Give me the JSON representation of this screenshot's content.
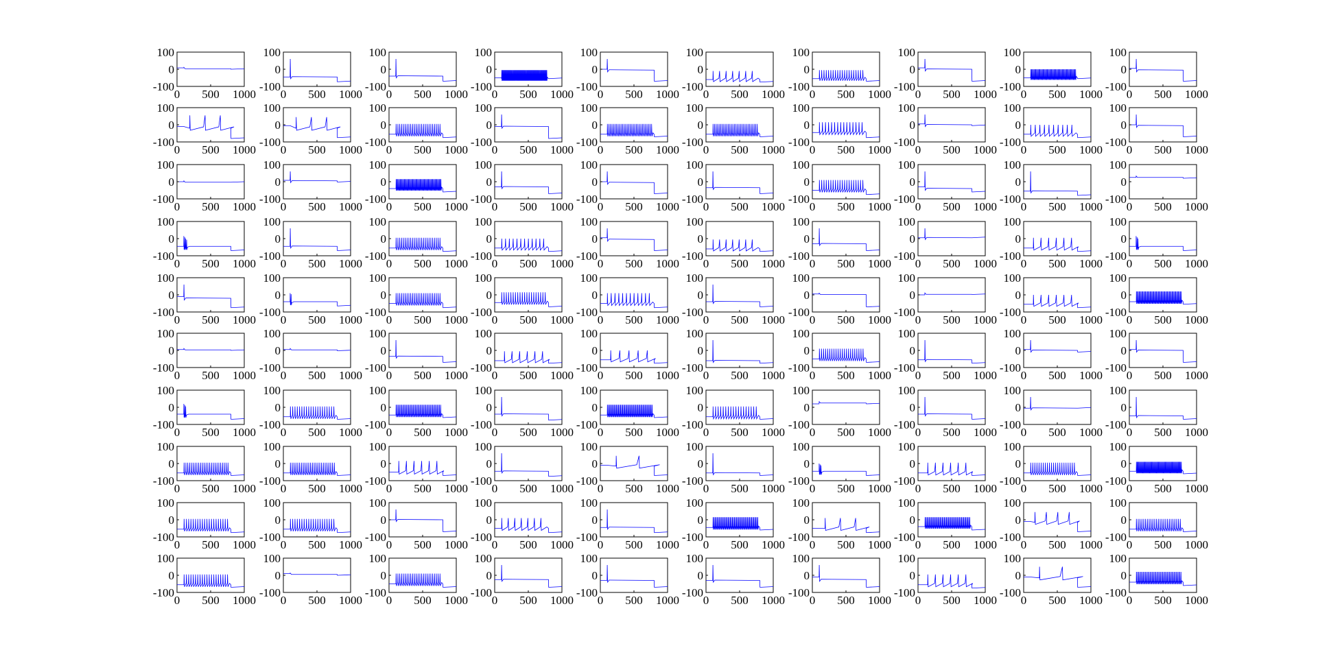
{
  "figure": {
    "rows": 10,
    "cols": 10,
    "trace_color": "#0000ff"
  },
  "axes": {
    "xlim": [
      0,
      1000
    ],
    "ylim": [
      -100,
      100
    ],
    "xticks": [
      0,
      500,
      1000
    ],
    "yticks": [
      100,
      0,
      -100
    ],
    "xtick_labels": [
      "0",
      "500",
      "1000"
    ],
    "ytick_labels": [
      "100",
      "0",
      "-100"
    ]
  },
  "chart_data": {
    "type": "line",
    "title": "",
    "xlabel": "",
    "ylabel": "",
    "xlim": [
      0,
      1000
    ],
    "ylim": [
      -100,
      100
    ],
    "grid": false,
    "note": "panels listed row-major",
    "panels": [
      {
        "p": "D",
        "rest": 8,
        "plat": 3,
        "spk": 0,
        "end": 0
      },
      {
        "p": "S",
        "rest": -45,
        "plat": -45,
        "spk": 1,
        "end": -73
      },
      {
        "p": "S",
        "rest": -40,
        "plat": -40,
        "spk": 1,
        "end": -70
      },
      {
        "p": "F",
        "rest": -50,
        "plat": -55,
        "spk": 70,
        "amp": 35,
        "end": -55
      },
      {
        "p": "S",
        "rest": 0,
        "plat": -5,
        "spk": 1,
        "end": -70
      },
      {
        "p": "R",
        "rest": -60,
        "plat": -60,
        "spk": 7,
        "amp": 35,
        "end": -75
      },
      {
        "p": "R",
        "rest": -55,
        "plat": -55,
        "spk": 20,
        "amp": 35,
        "end": -70
      },
      {
        "p": "S",
        "rest": 8,
        "plat": 0,
        "spk": 1,
        "end": -70
      },
      {
        "p": "F",
        "rest": -50,
        "plat": -50,
        "spk": 55,
        "amp": 35,
        "end": -55
      },
      {
        "p": "S",
        "rest": 5,
        "plat": -5,
        "spk": 1,
        "end": -70
      },
      {
        "p": "R",
        "rest": -10,
        "plat": -20,
        "spk": 3,
        "amp": 60,
        "end": -80
      },
      {
        "p": "R",
        "rest": -5,
        "plat": -20,
        "spk": 3,
        "amp": 50,
        "end": -75
      },
      {
        "p": "R",
        "rest": -55,
        "plat": -55,
        "spk": 25,
        "amp": 45,
        "end": -75
      },
      {
        "p": "S",
        "rest": -10,
        "plat": -10,
        "spk": 1,
        "end": -80
      },
      {
        "p": "R",
        "rest": -55,
        "plat": -55,
        "spk": 30,
        "amp": 45,
        "end": -70
      },
      {
        "p": "R",
        "rest": -55,
        "plat": -55,
        "spk": 30,
        "amp": 45,
        "end": -70
      },
      {
        "p": "R",
        "rest": -45,
        "plat": -45,
        "spk": 15,
        "amp": 45,
        "end": -75
      },
      {
        "p": "S",
        "rest": 5,
        "plat": 0,
        "spk": 1,
        "end": -5
      },
      {
        "p": "R",
        "rest": -55,
        "plat": -55,
        "spk": 10,
        "amp": 40,
        "end": -75
      },
      {
        "p": "S",
        "rest": 0,
        "plat": -5,
        "spk": 1,
        "end": -70
      },
      {
        "p": "D",
        "rest": 0,
        "plat": -3,
        "spk": 0,
        "end": -3
      },
      {
        "p": "S",
        "rest": 8,
        "plat": 5,
        "spk": 1,
        "end": -2
      },
      {
        "p": "F",
        "rest": -40,
        "plat": -40,
        "spk": 55,
        "amp": 40,
        "end": -60
      },
      {
        "p": "S",
        "rest": -30,
        "plat": -30,
        "spk": 1,
        "end": -70
      },
      {
        "p": "S",
        "rest": 0,
        "plat": -5,
        "spk": 1,
        "end": -70
      },
      {
        "p": "S",
        "rest": -35,
        "plat": -35,
        "spk": 1,
        "end": -70
      },
      {
        "p": "R",
        "rest": -50,
        "plat": -50,
        "spk": 20,
        "amp": 45,
        "end": -75
      },
      {
        "p": "S",
        "rest": -30,
        "plat": -40,
        "spk": 3,
        "end": -60
      },
      {
        "p": "S",
        "rest": -55,
        "plat": -55,
        "spk": 1,
        "end": -80
      },
      {
        "p": "D",
        "rest": 25,
        "plat": 25,
        "spk": 0,
        "end": 20
      },
      {
        "p": "B",
        "rest": -45,
        "plat": -45,
        "spk": 4,
        "amp": 60,
        "end": -70
      },
      {
        "p": "S",
        "rest": -45,
        "plat": -45,
        "spk": 1,
        "end": -70
      },
      {
        "p": "R",
        "rest": -55,
        "plat": -55,
        "spk": 25,
        "amp": 45,
        "end": -75
      },
      {
        "p": "R",
        "rest": -55,
        "plat": -55,
        "spk": 12,
        "amp": 40,
        "end": -75
      },
      {
        "p": "S",
        "rest": 5,
        "plat": -5,
        "spk": 1,
        "end": -70
      },
      {
        "p": "R",
        "rest": -60,
        "plat": -60,
        "spk": 7,
        "amp": 40,
        "end": -75
      },
      {
        "p": "S",
        "rest": -30,
        "plat": -30,
        "spk": 1,
        "end": -70
      },
      {
        "p": "S",
        "rest": 5,
        "plat": 5,
        "spk": 1,
        "end": 5
      },
      {
        "p": "R",
        "rest": -55,
        "plat": -55,
        "spk": 6,
        "amp": 45,
        "end": -75
      },
      {
        "p": "B",
        "rest": -45,
        "plat": -45,
        "spk": 3,
        "amp": 60,
        "end": -70
      },
      {
        "p": "S",
        "rest": -10,
        "plat": -20,
        "spk": 1,
        "end": -75
      },
      {
        "p": "B",
        "rest": -40,
        "plat": -40,
        "spk": 2,
        "amp": 50,
        "end": -65
      },
      {
        "p": "R",
        "rest": -50,
        "plat": -50,
        "spk": 25,
        "amp": 45,
        "end": -75
      },
      {
        "p": "R",
        "rest": -45,
        "plat": -45,
        "spk": 20,
        "amp": 45,
        "end": -70
      },
      {
        "p": "R",
        "rest": -50,
        "plat": -50,
        "spk": 12,
        "amp": 45,
        "end": -75
      },
      {
        "p": "S",
        "rest": -40,
        "plat": -40,
        "spk": 1,
        "end": -70
      },
      {
        "p": "D",
        "rest": 5,
        "plat": 2,
        "spk": 0,
        "end": -70
      },
      {
        "p": "D",
        "rest": 0,
        "plat": 3,
        "spk": 0,
        "end": 2
      },
      {
        "p": "R",
        "rest": -55,
        "plat": -55,
        "spk": 6,
        "amp": 40,
        "end": -75
      },
      {
        "p": "F",
        "rest": -40,
        "plat": -40,
        "spk": 50,
        "amp": 45,
        "end": -55
      },
      {
        "p": "D",
        "rest": 5,
        "plat": 3,
        "spk": 0,
        "end": 0
      },
      {
        "p": "D",
        "rest": 5,
        "plat": 3,
        "spk": 0,
        "end": -2
      },
      {
        "p": "S",
        "rest": -35,
        "plat": -35,
        "spk": 1,
        "end": -70
      },
      {
        "p": "R",
        "rest": -60,
        "plat": -60,
        "spk": 6,
        "amp": 40,
        "end": -75
      },
      {
        "p": "R",
        "rest": -55,
        "plat": -55,
        "spk": 5,
        "amp": 40,
        "end": -75
      },
      {
        "p": "S",
        "rest": -60,
        "plat": -60,
        "spk": 1,
        "end": -75
      },
      {
        "p": "R",
        "rest": -50,
        "plat": -50,
        "spk": 22,
        "amp": 45,
        "end": -70
      },
      {
        "p": "S",
        "rest": -55,
        "plat": -55,
        "spk": 1,
        "end": -75
      },
      {
        "p": "S",
        "rest": 5,
        "plat": 0,
        "spk": 1,
        "end": -10
      },
      {
        "p": "S",
        "rest": 5,
        "plat": 0,
        "spk": 1,
        "end": -70
      },
      {
        "p": "B",
        "rest": -40,
        "plat": -40,
        "spk": 3,
        "amp": 60,
        "end": -70
      },
      {
        "p": "R",
        "rest": -55,
        "plat": -55,
        "spk": 20,
        "amp": 45,
        "end": -70
      },
      {
        "p": "F",
        "rest": -45,
        "plat": -45,
        "spk": 40,
        "amp": 45,
        "end": -60
      },
      {
        "p": "S",
        "rest": -40,
        "plat": -40,
        "spk": 1,
        "end": -75
      },
      {
        "p": "F",
        "rest": -45,
        "plat": -45,
        "spk": 45,
        "amp": 45,
        "end": -60
      },
      {
        "p": "R",
        "rest": -55,
        "plat": -55,
        "spk": 18,
        "amp": 45,
        "end": -70
      },
      {
        "p": "D",
        "rest": 20,
        "plat": 25,
        "spk": 0,
        "end": 20
      },
      {
        "p": "S",
        "rest": -40,
        "plat": -40,
        "spk": 1,
        "end": -70
      },
      {
        "p": "S",
        "rest": -5,
        "plat": -5,
        "spk": 1,
        "end": -5
      },
      {
        "p": "S",
        "rest": -50,
        "plat": -50,
        "spk": 1,
        "end": -70
      },
      {
        "p": "R",
        "rest": -55,
        "plat": -55,
        "spk": 25,
        "amp": 45,
        "end": -70
      },
      {
        "p": "R",
        "rest": -55,
        "plat": -55,
        "spk": 25,
        "amp": 45,
        "end": -70
      },
      {
        "p": "R",
        "rest": -50,
        "plat": -50,
        "spk": 6,
        "amp": 50,
        "end": -70
      },
      {
        "p": "S",
        "rest": -45,
        "plat": -45,
        "spk": 1,
        "end": -75
      },
      {
        "p": "R",
        "rest": -10,
        "plat": -15,
        "spk": 2,
        "amp": 45,
        "end": -70
      },
      {
        "p": "S",
        "rest": -55,
        "plat": -55,
        "spk": 1,
        "end": -70
      },
      {
        "p": "B",
        "rest": -45,
        "plat": -45,
        "spk": 3,
        "amp": 45,
        "end": -70
      },
      {
        "p": "R",
        "rest": -55,
        "plat": -55,
        "spk": 6,
        "amp": 45,
        "end": -70
      },
      {
        "p": "R",
        "rest": -55,
        "plat": -55,
        "spk": 22,
        "amp": 45,
        "end": -70
      },
      {
        "p": "F",
        "rest": -45,
        "plat": -45,
        "spk": 60,
        "amp": 40,
        "end": -60
      },
      {
        "p": "R",
        "rest": -55,
        "plat": -55,
        "spk": 20,
        "amp": 45,
        "end": -75
      },
      {
        "p": "R",
        "rest": -55,
        "plat": -55,
        "spk": 20,
        "amp": 45,
        "end": -75
      },
      {
        "p": "S",
        "rest": 0,
        "plat": 0,
        "spk": 1,
        "end": -70
      },
      {
        "p": "R",
        "rest": -50,
        "plat": -50,
        "spk": 7,
        "amp": 45,
        "end": -75
      },
      {
        "p": "S",
        "rest": -45,
        "plat": -45,
        "spk": 1,
        "end": -75
      },
      {
        "p": "F",
        "rest": -45,
        "plat": -45,
        "spk": 45,
        "amp": 45,
        "end": -60
      },
      {
        "p": "R",
        "rest": -50,
        "plat": -50,
        "spk": 3,
        "amp": 45,
        "end": -75
      },
      {
        "p": "F",
        "rest": -40,
        "plat": -40,
        "spk": 45,
        "amp": 40,
        "end": -60
      },
      {
        "p": "R",
        "rest": -10,
        "plat": -15,
        "spk": 4,
        "amp": 45,
        "end": -70
      },
      {
        "p": "R",
        "rest": -55,
        "plat": -55,
        "spk": 25,
        "amp": 45,
        "end": -70
      },
      {
        "p": "R",
        "rest": -55,
        "plat": -55,
        "spk": 20,
        "amp": 45,
        "end": -70
      },
      {
        "p": "D",
        "rest": 10,
        "plat": 5,
        "spk": 0,
        "end": 0
      },
      {
        "p": "R",
        "rest": -50,
        "plat": -50,
        "spk": 25,
        "amp": 45,
        "end": -70
      },
      {
        "p": "S",
        "rest": -25,
        "plat": -25,
        "spk": 1,
        "end": -70
      },
      {
        "p": "S",
        "rest": -30,
        "plat": -30,
        "spk": 1,
        "end": -70
      },
      {
        "p": "S",
        "rest": -30,
        "plat": -30,
        "spk": 1,
        "end": -70
      },
      {
        "p": "S",
        "rest": -10,
        "plat": -25,
        "spk": 1,
        "end": -70
      },
      {
        "p": "R",
        "rest": -55,
        "plat": -55,
        "spk": 6,
        "amp": 45,
        "end": -75
      },
      {
        "p": "R",
        "rest": -10,
        "plat": -15,
        "spk": 2,
        "amp": 50,
        "end": -70
      },
      {
        "p": "F",
        "rest": -40,
        "plat": -40,
        "spk": 40,
        "amp": 45,
        "end": -60
      }
    ]
  }
}
